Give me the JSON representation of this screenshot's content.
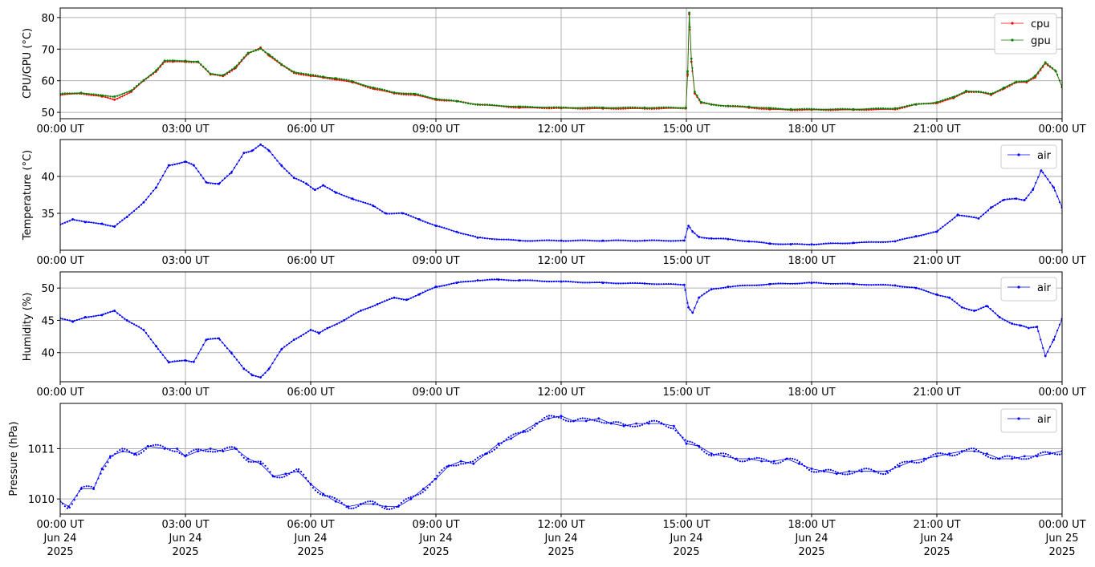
{
  "figure": {
    "background": "#ffffff",
    "grid_color": "#b0b0b0",
    "axis_color": "#000000"
  },
  "x_ticks": [
    "00:00 UT",
    "03:00 UT",
    "06:00 UT",
    "09:00 UT",
    "12:00 UT",
    "15:00 UT",
    "18:00 UT",
    "21:00 UT",
    "00:00 UT"
  ],
  "x_dates": [
    "Jun 24\n2025",
    "Jun 24\n2025",
    "Jun 24\n2025",
    "Jun 24\n2025",
    "Jun 24\n2025",
    "Jun 24\n2025",
    "Jun 24\n2025",
    "Jun 24\n2025",
    "Jun 25\n2025"
  ],
  "chart_data": [
    {
      "type": "line",
      "title": "",
      "xlabel": "",
      "ylabel": "CPU/GPU (°C)",
      "x_unit": "hours since 2025-06-24 00:00 UT",
      "xlim": [
        0,
        24
      ],
      "ylim": [
        48,
        83
      ],
      "yticks": [
        50,
        60,
        70,
        80
      ],
      "grid": true,
      "legend": "top-right",
      "series": [
        {
          "name": "cpu",
          "color": "#ff0000",
          "x": [
            0,
            0.5,
            1.0,
            1.3,
            1.7,
            2.0,
            2.3,
            2.5,
            2.7,
            3.0,
            3.3,
            3.6,
            3.9,
            4.2,
            4.5,
            4.8,
            5.0,
            5.3,
            5.6,
            6.0,
            6.3,
            6.6,
            7.0,
            7.5,
            8.0,
            8.5,
            9.0,
            9.5,
            10.0,
            11.0,
            12.0,
            13.0,
            14.0,
            14.99,
            15.03,
            15.07,
            15.12,
            15.2,
            15.35,
            15.6,
            16.0,
            16.5,
            17.0,
            17.5,
            18.0,
            19.0,
            20.0,
            20.5,
            21.0,
            21.4,
            21.7,
            22.0,
            22.3,
            22.6,
            22.9,
            23.15,
            23.35,
            23.6,
            23.85,
            24.0
          ],
          "y": [
            55.5,
            56.0,
            55.0,
            54.0,
            56.5,
            60.0,
            63.0,
            66.0,
            66.0,
            66.0,
            66.0,
            62.0,
            61.5,
            64.0,
            68.5,
            70.5,
            68.0,
            65.0,
            62.5,
            61.5,
            61.0,
            60.5,
            59.5,
            57.5,
            56.0,
            55.5,
            54.0,
            53.5,
            52.5,
            51.5,
            51.3,
            51.2,
            51.2,
            51.3,
            62.0,
            81.0,
            66.0,
            56.0,
            53.0,
            52.5,
            52.0,
            51.5,
            51.0,
            50.8,
            50.8,
            50.8,
            51.0,
            52.5,
            53.0,
            54.5,
            56.5,
            56.5,
            55.5,
            57.5,
            59.5,
            59.5,
            61.0,
            65.5,
            63.0,
            58.0
          ]
        },
        {
          "name": "gpu",
          "color": "#008000",
          "x": [
            0,
            0.5,
            1.0,
            1.3,
            1.7,
            2.0,
            2.3,
            2.5,
            2.7,
            3.0,
            3.3,
            3.6,
            3.9,
            4.2,
            4.5,
            4.8,
            5.0,
            5.3,
            5.6,
            6.0,
            6.3,
            6.6,
            7.0,
            7.5,
            8.0,
            8.5,
            9.0,
            9.5,
            10.0,
            11.0,
            12.0,
            13.0,
            14.0,
            14.99,
            15.03,
            15.07,
            15.12,
            15.2,
            15.35,
            15.6,
            16.0,
            16.5,
            17.0,
            17.5,
            18.0,
            19.0,
            20.0,
            20.5,
            21.0,
            21.4,
            21.7,
            22.0,
            22.3,
            22.6,
            22.9,
            23.15,
            23.35,
            23.6,
            23.85,
            24.0
          ],
          "y": [
            55.8,
            56.2,
            55.3,
            55.0,
            56.8,
            60.2,
            63.3,
            66.3,
            66.3,
            66.3,
            66.0,
            62.2,
            61.8,
            64.3,
            68.8,
            70.2,
            68.3,
            65.2,
            62.8,
            61.8,
            61.3,
            60.8,
            59.8,
            57.8,
            56.3,
            55.8,
            54.3,
            53.5,
            52.5,
            51.8,
            51.5,
            51.5,
            51.5,
            51.5,
            63.0,
            81.5,
            67.0,
            56.5,
            53.2,
            52.5,
            52.0,
            51.8,
            51.3,
            51.0,
            51.0,
            51.0,
            51.3,
            52.5,
            53.2,
            54.8,
            56.8,
            56.5,
            55.8,
            57.8,
            59.6,
            59.8,
            61.5,
            65.8,
            63.0,
            58.0
          ]
        }
      ]
    },
    {
      "type": "line",
      "title": "",
      "xlabel": "",
      "ylabel": "Temperature (°C)",
      "x_unit": "hours since 2025-06-24 00:00 UT",
      "xlim": [
        0,
        24
      ],
      "ylim": [
        30,
        45
      ],
      "yticks": [
        35,
        40
      ],
      "grid": true,
      "legend": "top-right",
      "series": [
        {
          "name": "air",
          "color": "#0000ff",
          "x": [
            0,
            0.3,
            0.6,
            1.0,
            1.3,
            1.6,
            2.0,
            2.3,
            2.6,
            3.0,
            3.2,
            3.5,
            3.8,
            4.1,
            4.4,
            4.6,
            4.8,
            5.0,
            5.3,
            5.6,
            5.9,
            6.1,
            6.3,
            6.6,
            7.0,
            7.5,
            7.8,
            8.2,
            8.6,
            9.0,
            9.5,
            10.0,
            11.0,
            12.0,
            13.0,
            14.0,
            14.95,
            15.05,
            15.15,
            15.3,
            15.6,
            16.0,
            16.5,
            17.0,
            17.5,
            18.0,
            19.0,
            20.0,
            20.5,
            21.0,
            21.5,
            22.0,
            22.3,
            22.6,
            22.9,
            23.1,
            23.3,
            23.5,
            23.8,
            24.0
          ],
          "y": [
            33.5,
            34.2,
            33.8,
            33.6,
            33.2,
            34.5,
            36.5,
            38.5,
            41.5,
            42.0,
            41.5,
            39.2,
            39.0,
            40.5,
            43.2,
            43.5,
            44.3,
            43.5,
            41.5,
            39.8,
            39.0,
            38.2,
            38.8,
            37.8,
            37.0,
            36.0,
            35.0,
            35.0,
            34.2,
            33.3,
            32.5,
            31.7,
            31.3,
            31.3,
            31.3,
            31.3,
            31.3,
            33.3,
            32.5,
            31.8,
            31.6,
            31.5,
            31.2,
            30.9,
            30.8,
            30.8,
            31.0,
            31.2,
            31.9,
            32.5,
            34.8,
            34.3,
            35.8,
            36.8,
            37.0,
            36.8,
            38.2,
            40.8,
            38.5,
            35.8
          ]
        }
      ]
    },
    {
      "type": "line",
      "title": "",
      "xlabel": "",
      "ylabel": "Humidity (%)",
      "x_unit": "hours since 2025-06-24 00:00 UT",
      "xlim": [
        0,
        24
      ],
      "ylim": [
        35.5,
        52.5
      ],
      "yticks": [
        40,
        45,
        50
      ],
      "grid": true,
      "legend": "top-right",
      "series": [
        {
          "name": "air",
          "color": "#0000ff",
          "x": [
            0,
            0.3,
            0.6,
            1.0,
            1.3,
            1.6,
            2.0,
            2.3,
            2.6,
            3.0,
            3.2,
            3.5,
            3.8,
            4.1,
            4.4,
            4.6,
            4.8,
            5.0,
            5.3,
            5.6,
            6.0,
            6.2,
            6.4,
            6.8,
            7.2,
            7.6,
            8.0,
            8.3,
            8.6,
            9.0,
            9.5,
            10.0,
            10.5,
            11.0,
            12.0,
            13.0,
            14.0,
            14.95,
            15.05,
            15.15,
            15.3,
            15.6,
            16.0,
            17.0,
            18.0,
            19.0,
            20.0,
            20.5,
            21.0,
            21.3,
            21.6,
            21.9,
            22.2,
            22.5,
            22.8,
            23.0,
            23.2,
            23.4,
            23.6,
            23.8,
            24.0
          ],
          "y": [
            45.3,
            44.8,
            45.5,
            45.8,
            46.5,
            45.0,
            43.5,
            41.0,
            38.5,
            38.8,
            38.6,
            42.0,
            42.2,
            40.0,
            37.5,
            36.5,
            36.2,
            37.5,
            40.5,
            42.0,
            43.5,
            43.0,
            43.8,
            45.0,
            46.5,
            47.5,
            48.5,
            48.2,
            49.0,
            50.2,
            50.8,
            51.2,
            51.3,
            51.2,
            51.0,
            50.8,
            50.7,
            50.5,
            47.0,
            46.2,
            48.5,
            49.8,
            50.2,
            50.6,
            50.8,
            50.6,
            50.4,
            50.0,
            49.0,
            48.5,
            47.0,
            46.5,
            47.2,
            45.5,
            44.5,
            44.2,
            43.8,
            44.0,
            39.5,
            42.0,
            45.2
          ]
        }
      ]
    },
    {
      "type": "line",
      "title": "",
      "xlabel": "",
      "ylabel": "Pressure (hPa)",
      "x_unit": "hours since 2025-06-24 00:00 UT",
      "xlim": [
        0,
        24
      ],
      "ylim": [
        1009.7,
        1011.9
      ],
      "yticks": [
        1010,
        1011
      ],
      "grid": true,
      "legend": "top-right",
      "series": [
        {
          "name": "air",
          "color": "#0000ff",
          "x": [
            0,
            0.2,
            0.5,
            0.8,
            1.0,
            1.2,
            1.5,
            1.8,
            2.1,
            2.5,
            2.8,
            3.0,
            3.3,
            3.6,
            3.9,
            4.2,
            4.5,
            4.8,
            5.1,
            5.4,
            5.7,
            6.0,
            6.3,
            6.6,
            6.9,
            7.2,
            7.5,
            7.8,
            8.1,
            8.4,
            8.7,
            9.0,
            9.3,
            9.6,
            9.9,
            10.2,
            10.5,
            10.8,
            11.1,
            11.4,
            11.7,
            12.0,
            12.3,
            12.6,
            12.9,
            13.2,
            13.5,
            13.8,
            14.1,
            14.4,
            14.7,
            15.0,
            15.3,
            15.6,
            15.9,
            16.2,
            16.5,
            16.8,
            17.1,
            17.4,
            17.7,
            18.0,
            18.3,
            18.6,
            18.9,
            19.2,
            19.5,
            19.8,
            20.1,
            20.4,
            20.7,
            21.0,
            21.3,
            21.6,
            21.9,
            22.2,
            22.5,
            22.8,
            23.1,
            23.4,
            23.7,
            24.0
          ],
          "y": [
            1009.95,
            1009.85,
            1010.2,
            1010.2,
            1010.6,
            1010.85,
            1010.95,
            1010.9,
            1011.05,
            1011.0,
            1011.0,
            1010.85,
            1010.95,
            1011.0,
            1010.95,
            1011.0,
            1010.8,
            1010.7,
            1010.45,
            1010.5,
            1010.55,
            1010.3,
            1010.1,
            1009.95,
            1009.85,
            1009.9,
            1009.9,
            1009.85,
            1009.85,
            1010.0,
            1010.2,
            1010.4,
            1010.65,
            1010.75,
            1010.7,
            1010.9,
            1011.1,
            1011.2,
            1011.35,
            1011.5,
            1011.6,
            1011.65,
            1011.55,
            1011.55,
            1011.6,
            1011.5,
            1011.45,
            1011.5,
            1011.5,
            1011.5,
            1011.45,
            1011.1,
            1011.05,
            1010.9,
            1010.85,
            1010.8,
            1010.8,
            1010.75,
            1010.75,
            1010.8,
            1010.7,
            1010.6,
            1010.55,
            1010.5,
            1010.55,
            1010.55,
            1010.55,
            1010.55,
            1010.65,
            1010.75,
            1010.8,
            1010.85,
            1010.9,
            1010.95,
            1010.95,
            1010.9,
            1010.8,
            1010.8,
            1010.85,
            1010.85,
            1010.9,
            1010.95
          ]
        }
      ]
    }
  ]
}
